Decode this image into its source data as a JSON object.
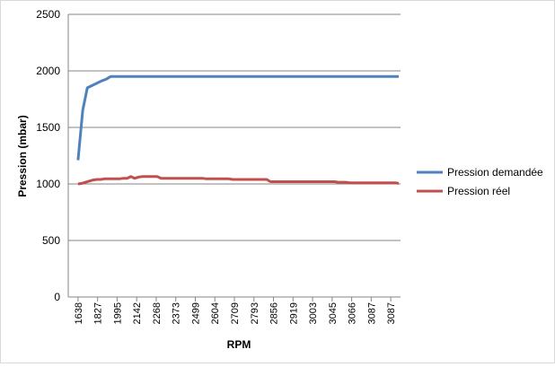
{
  "chart_data": {
    "type": "line",
    "title": "",
    "xlabel": "RPM",
    "ylabel": "Pression (mbar)",
    "ylim": [
      0,
      2500
    ],
    "yticks": [
      0,
      500,
      1000,
      1500,
      2000,
      2500
    ],
    "grid": "horizontal",
    "legend_position": "right",
    "x_tick_labels": [
      "1638",
      "1827",
      "1995",
      "2142",
      "2268",
      "2373",
      "2499",
      "2604",
      "2709",
      "2793",
      "2856",
      "2919",
      "3003",
      "3045",
      "3066",
      "3087",
      "3087"
    ],
    "series": [
      {
        "name": "Pression demandée",
        "color": "#4f81bd",
        "values": [
          1210,
          1650,
          1850,
          1870,
          1890,
          1910,
          1925,
          1950,
          1950,
          1950,
          1950,
          1950,
          1950,
          1950,
          1950,
          1950,
          1950,
          1950,
          1950,
          1950,
          1950,
          1950,
          1950,
          1950,
          1950,
          1950,
          1950,
          1950,
          1950,
          1950,
          1950,
          1950,
          1950,
          1950,
          1950,
          1950,
          1950,
          1950,
          1950,
          1950,
          1950,
          1950,
          1950,
          1950,
          1950,
          1950,
          1950,
          1950,
          1950,
          1950,
          1950,
          1950,
          1950,
          1950,
          1950,
          1950,
          1950,
          1950,
          1950,
          1950,
          1950,
          1950,
          1950,
          1950,
          1950,
          1950,
          1950,
          1950,
          1950,
          1950
        ]
      },
      {
        "name": "Pression réel",
        "color": "#c0504d",
        "values": [
          1000,
          1005,
          1015,
          1025,
          1035,
          1040,
          1040,
          1045,
          1045,
          1045,
          1045,
          1045,
          1050,
          1050,
          1065,
          1050,
          1060,
          1065,
          1065,
          1065,
          1065,
          1065,
          1050,
          1050,
          1050,
          1050,
          1050,
          1050,
          1050,
          1050,
          1050,
          1050,
          1050,
          1050,
          1045,
          1045,
          1045,
          1045,
          1045,
          1045,
          1045,
          1040,
          1040,
          1040,
          1040,
          1040,
          1040,
          1040,
          1040,
          1040,
          1040,
          1020,
          1020,
          1020,
          1020,
          1020,
          1020,
          1020,
          1020,
          1020,
          1020,
          1020,
          1020,
          1020,
          1020,
          1020,
          1020,
          1020,
          1020,
          1015,
          1015,
          1015,
          1010,
          1010,
          1010,
          1010,
          1010,
          1010,
          1010,
          1010,
          1010,
          1010,
          1010,
          1010,
          1010,
          1005
        ]
      }
    ]
  }
}
